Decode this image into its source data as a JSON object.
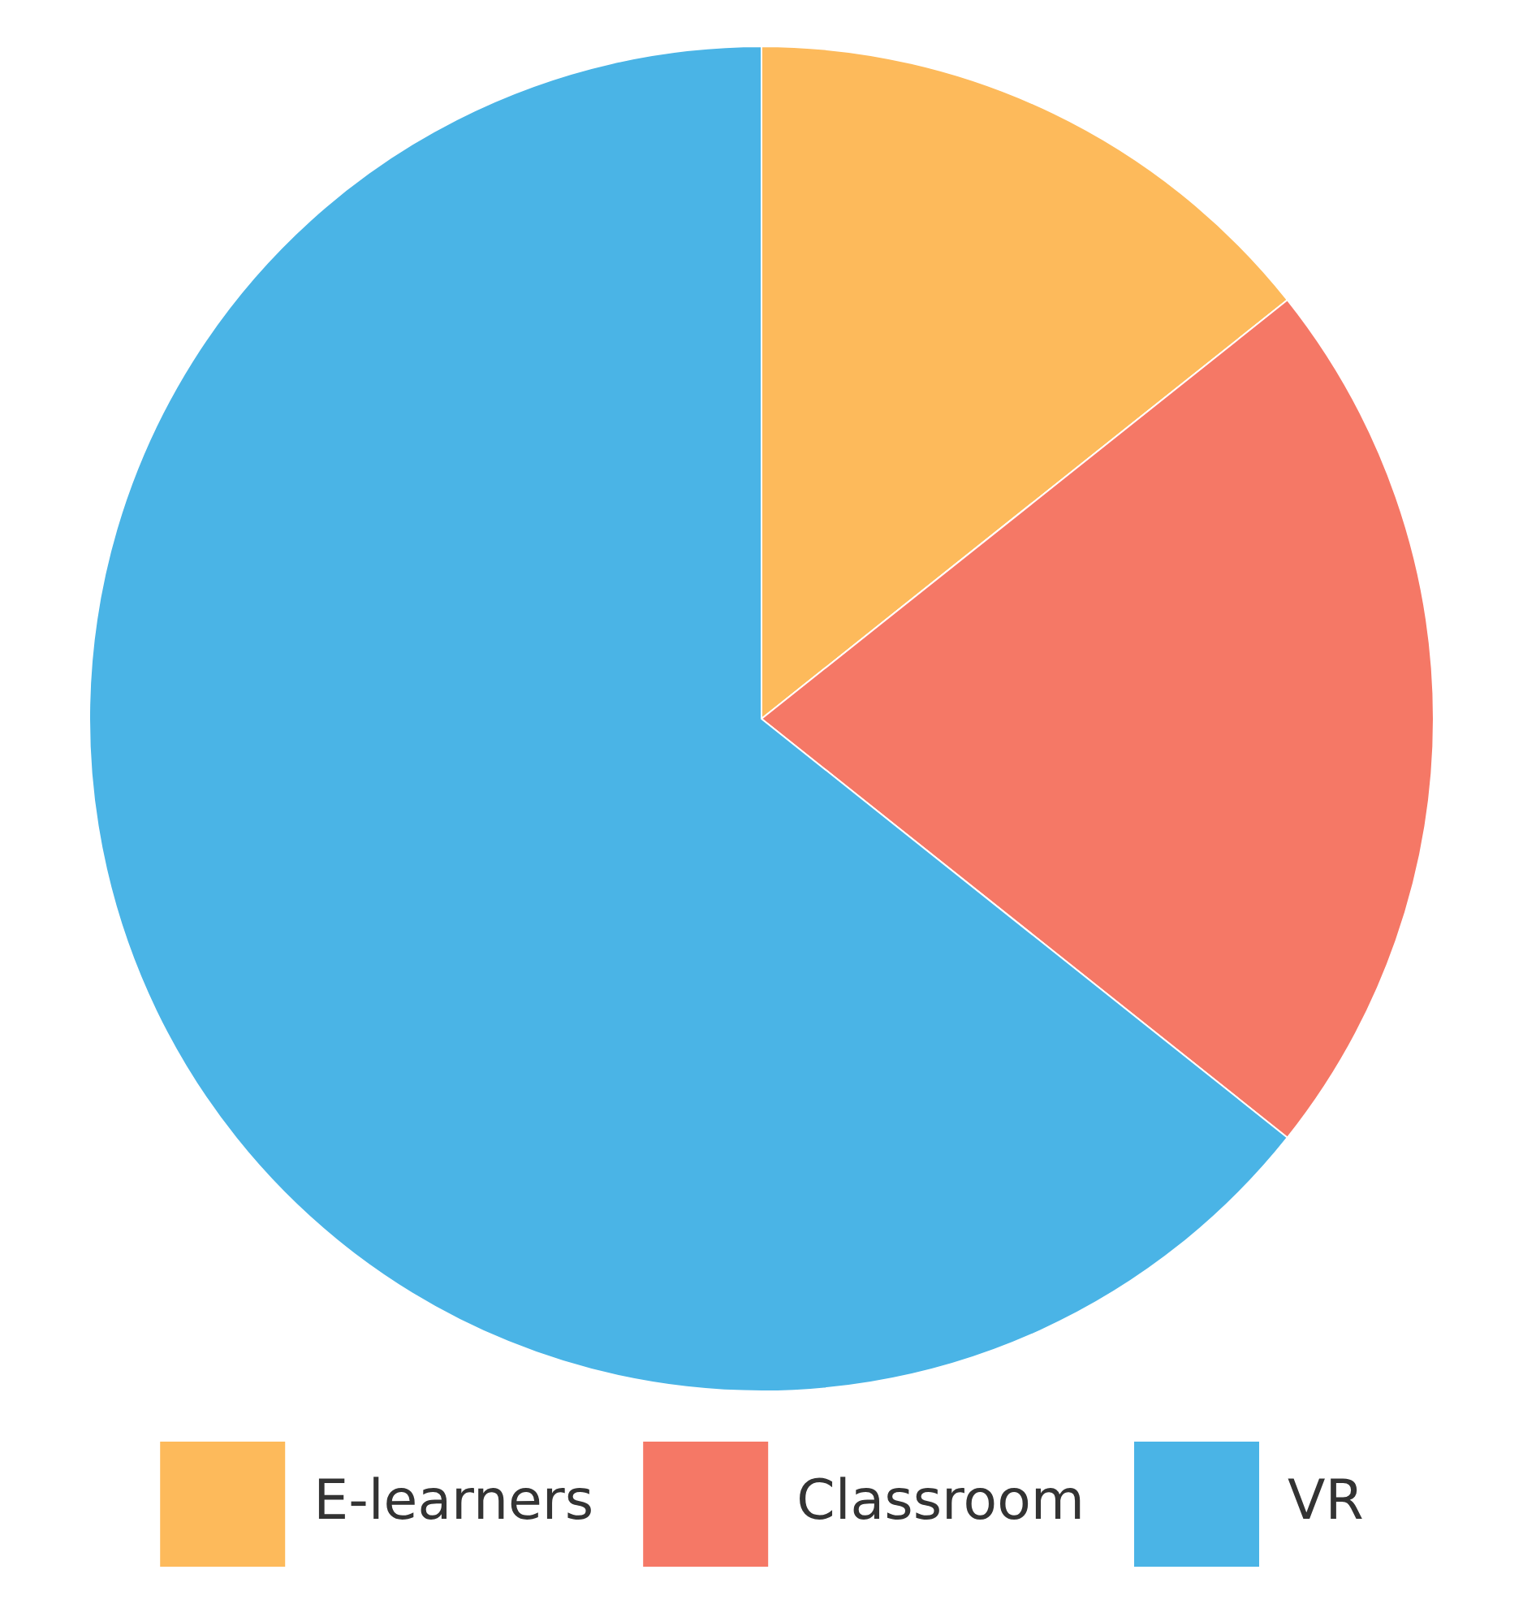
{
  "chart_data": {
    "type": "pie",
    "categories": [
      "E-learners",
      "Classroom",
      "VR"
    ],
    "values": [
      14.3,
      21.4,
      64.3
    ],
    "colors": [
      "#fdba5b",
      "#f57866",
      "#4ab4e6"
    ],
    "legend": "bottom"
  }
}
